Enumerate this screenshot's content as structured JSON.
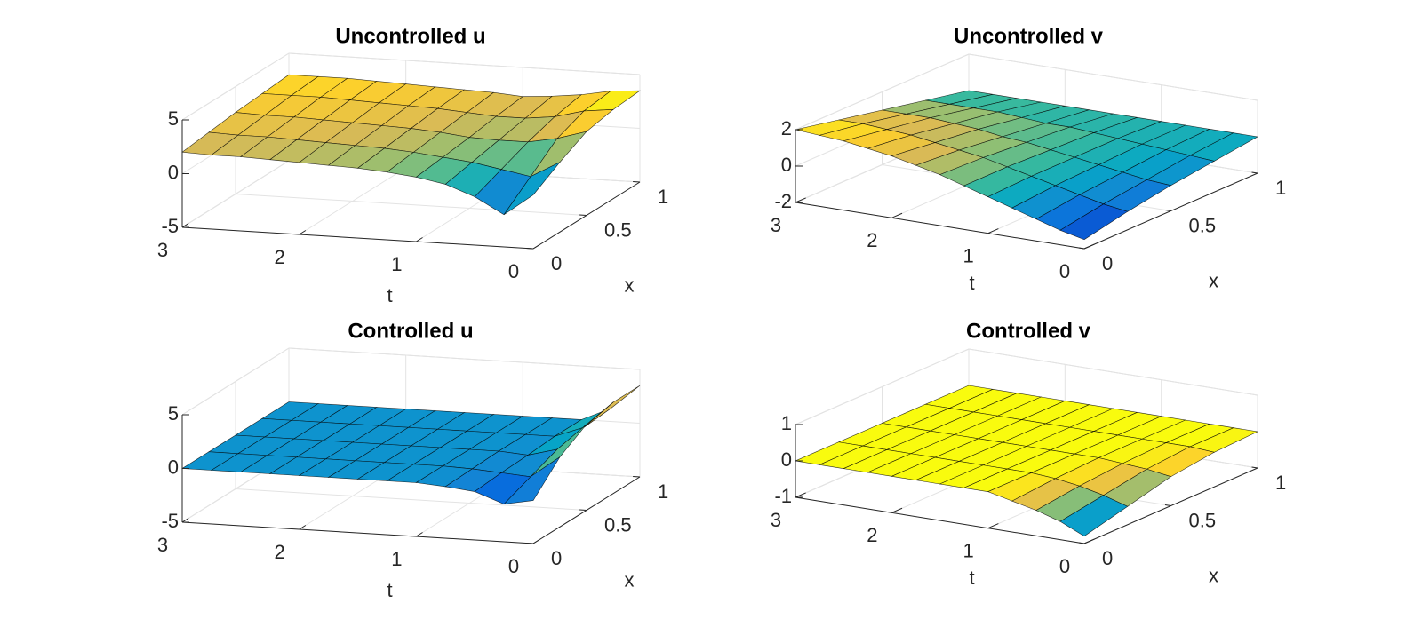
{
  "chart_data": [
    {
      "type": "surface",
      "title": "Uncontrolled u",
      "tlabel": "t",
      "xlabel": "x",
      "t": [
        0,
        0.25,
        0.5,
        0.75,
        1,
        1.25,
        1.5,
        1.75,
        2,
        2.25,
        2.5,
        2.75,
        3
      ],
      "x": [
        0,
        0.25,
        0.5,
        0.75,
        1
      ],
      "z": [
        [
          0,
          1.5,
          2.8,
          3.3,
          3.5
        ],
        [
          -2,
          0,
          2,
          3,
          3.3
        ],
        [
          -0.5,
          0.5,
          1.5,
          2.3,
          2.8
        ],
        [
          0.5,
          1,
          1.5,
          2,
          2.5
        ],
        [
          1,
          1.3,
          1.6,
          2,
          2.3
        ],
        [
          1.3,
          1.6,
          1.9,
          2.2,
          2.5
        ],
        [
          1.5,
          1.8,
          2.1,
          2.4,
          2.6
        ],
        [
          1.6,
          1.9,
          2.2,
          2.5,
          2.7
        ],
        [
          1.7,
          2,
          2.3,
          2.6,
          2.8
        ],
        [
          1.8,
          2.1,
          2.4,
          2.7,
          2.9
        ],
        [
          1.9,
          2.2,
          2.5,
          2.8,
          3
        ],
        [
          1.9,
          2.2,
          2.5,
          2.8,
          3
        ],
        [
          2,
          2.3,
          2.6,
          2.8,
          3
        ]
      ],
      "tlim": [
        0,
        3
      ],
      "tticks": [
        0,
        1,
        2,
        3
      ],
      "xlim": [
        0,
        1
      ],
      "xticks": [
        0,
        0.5,
        1
      ],
      "zlim": [
        -5,
        5
      ],
      "zticks": [
        -5,
        0,
        5
      ],
      "grid": true,
      "colormap": [
        "#352a87",
        "#0363e1",
        "#1485d4",
        "#06a7c6",
        "#38b99e",
        "#92bf73",
        "#d9ba56",
        "#fcce2e",
        "#f9fb0e"
      ]
    },
    {
      "type": "surface",
      "title": "Uncontrolled v",
      "tlabel": "t",
      "xlabel": "x",
      "t": [
        0,
        0.25,
        0.5,
        0.75,
        1,
        1.25,
        1.5,
        1.75,
        2,
        2.25,
        2.5,
        2.75,
        3
      ],
      "x": [
        0,
        0.25,
        0.5,
        0.75,
        1
      ],
      "z": [
        [
          -1.5,
          -1,
          -0.6,
          -0.3,
          0
        ],
        [
          -1.2,
          -0.8,
          -0.5,
          -0.2,
          0
        ],
        [
          -0.8,
          -0.5,
          -0.3,
          -0.1,
          0
        ],
        [
          -0.4,
          -0.2,
          -0.1,
          0,
          0
        ],
        [
          0,
          0.1,
          0.1,
          0.1,
          0
        ],
        [
          0.4,
          0.4,
          0.3,
          0.2,
          0
        ],
        [
          0.8,
          0.7,
          0.5,
          0.3,
          0
        ],
        [
          1.1,
          0.9,
          0.6,
          0.3,
          0
        ],
        [
          1.4,
          1.1,
          0.8,
          0.4,
          0
        ],
        [
          1.6,
          1.3,
          0.9,
          0.5,
          0
        ],
        [
          1.8,
          1.4,
          1,
          0.5,
          0
        ],
        [
          1.9,
          1.5,
          1,
          0.5,
          0
        ],
        [
          2,
          1.5,
          1,
          0.5,
          0
        ]
      ],
      "tlim": [
        0,
        3
      ],
      "tticks": [
        0,
        1,
        2,
        3
      ],
      "xlim": [
        0,
        1
      ],
      "xticks": [
        0,
        0.5,
        1
      ],
      "zlim": [
        -2,
        2
      ],
      "zticks": [
        -2,
        0,
        2
      ],
      "grid": true,
      "colormap": [
        "#352a87",
        "#0363e1",
        "#1485d4",
        "#06a7c6",
        "#38b99e",
        "#92bf73",
        "#d9ba56",
        "#fcce2e",
        "#f9fb0e"
      ]
    },
    {
      "type": "surface",
      "title": "Controlled u",
      "tlabel": "t",
      "xlabel": "x",
      "t": [
        0,
        0.25,
        0.5,
        0.75,
        1,
        1.25,
        1.5,
        1.75,
        2,
        2.25,
        2.5,
        2.75,
        3
      ],
      "x": [
        0,
        0.25,
        0.5,
        0.75,
        1
      ],
      "z": [
        [
          -1,
          1.5,
          3,
          3.5,
          3.5
        ],
        [
          -1.5,
          -0.5,
          0.5,
          1,
          1.2
        ],
        [
          -0.5,
          -0.3,
          -0.2,
          0,
          0
        ],
        [
          -0.2,
          -0.1,
          0,
          0,
          0
        ],
        [
          0,
          0,
          0,
          0,
          0
        ],
        [
          0,
          0,
          0,
          0,
          0
        ],
        [
          0,
          0,
          0,
          0,
          0
        ],
        [
          0,
          0,
          0,
          0,
          0
        ],
        [
          0,
          0,
          0,
          0,
          0
        ],
        [
          0,
          0,
          0,
          0,
          0
        ],
        [
          0,
          0,
          0,
          0,
          0
        ],
        [
          0,
          0,
          0,
          0,
          0
        ],
        [
          0,
          0,
          0,
          0,
          0
        ]
      ],
      "tlim": [
        0,
        3
      ],
      "tticks": [
        0,
        1,
        2,
        3
      ],
      "xlim": [
        0,
        1
      ],
      "xticks": [
        0,
        0.5,
        1
      ],
      "zlim": [
        -5,
        5
      ],
      "zticks": [
        -5,
        0,
        5
      ],
      "grid": true,
      "colormap": [
        "#352a87",
        "#0363e1",
        "#1485d4",
        "#06a7c6",
        "#38b99e",
        "#92bf73",
        "#d9ba56",
        "#fcce2e",
        "#f9fb0e"
      ]
    },
    {
      "type": "surface",
      "title": "Controlled v",
      "tlabel": "t",
      "xlabel": "x",
      "t": [
        0,
        0.25,
        0.5,
        0.75,
        1,
        1.25,
        1.5,
        1.75,
        2,
        2.25,
        2.5,
        2.75,
        3
      ],
      "x": [
        0,
        0.25,
        0.5,
        0.75,
        1
      ],
      "z": [
        [
          -0.8,
          -0.5,
          -0.2,
          -0.05,
          0
        ],
        [
          -0.5,
          -0.3,
          -0.1,
          0,
          0
        ],
        [
          -0.3,
          -0.15,
          -0.05,
          0,
          0
        ],
        [
          -0.15,
          -0.05,
          0,
          0,
          0
        ],
        [
          0,
          0,
          0,
          0,
          0
        ],
        [
          0,
          0,
          0,
          0,
          0
        ],
        [
          0,
          0,
          0,
          0,
          0
        ],
        [
          0,
          0,
          0,
          0,
          0
        ],
        [
          0,
          0,
          0,
          0,
          0
        ],
        [
          0,
          0,
          0,
          0,
          0
        ],
        [
          0,
          0,
          0,
          0,
          0
        ],
        [
          0,
          0,
          0,
          0,
          0
        ],
        [
          0,
          0,
          0,
          0,
          0
        ]
      ],
      "tlim": [
        0,
        3
      ],
      "tticks": [
        0,
        1,
        2,
        3
      ],
      "xlim": [
        0,
        1
      ],
      "xticks": [
        0,
        0.5,
        1
      ],
      "zlim": [
        -1,
        1
      ],
      "zticks": [
        -1,
        0,
        1
      ],
      "grid": true,
      "colormap": [
        "#352a87",
        "#0363e1",
        "#1485d4",
        "#06a7c6",
        "#38b99e",
        "#92bf73",
        "#d9ba56",
        "#fcce2e",
        "#f9fb0e"
      ]
    }
  ]
}
